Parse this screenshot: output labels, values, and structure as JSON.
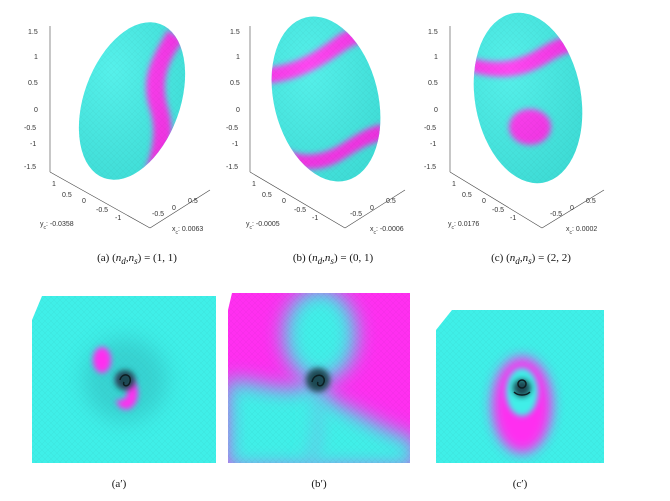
{
  "colors": {
    "cyan": "#3fefe8",
    "magenta": "#ff2ff0",
    "dark": "#12323a"
  },
  "panels": [
    {
      "id": "a",
      "z_ticks": [
        "1.5",
        "1",
        "0.5",
        "0",
        "-0.5",
        "-1",
        "-1.5"
      ],
      "y_ticks": [
        "1",
        "0.5",
        "0",
        "-0.5",
        "-1"
      ],
      "x_ticks": [
        "-0.5",
        "0",
        "0.5"
      ],
      "y_label": "y",
      "y_sub": "c",
      "y_value": ": -0.0358",
      "x_label": "x",
      "x_sub": "c",
      "x_value": ": 0.0063",
      "caption_prefix": "(a) (",
      "caption_vars": "n",
      "caption_sub1": "d",
      "caption_sub2": "s",
      "caption_value": "(1, 1)"
    },
    {
      "id": "b",
      "z_ticks": [
        "1.5",
        "1",
        "0.5",
        "0",
        "-0.5",
        "-1",
        "-1.5"
      ],
      "y_ticks": [
        "1",
        "0.5",
        "0",
        "-0.5",
        "-1"
      ],
      "x_ticks": [
        "-0.5",
        "0",
        "0.5"
      ],
      "y_label": "y",
      "y_sub": "c",
      "y_value": ": -0.0005",
      "x_label": "x",
      "x_sub": "c",
      "x_value": ": -0.0006",
      "caption_prefix": "(b) (",
      "caption_vars": "n",
      "caption_sub1": "d",
      "caption_sub2": "s",
      "caption_value": "(0, 1)"
    },
    {
      "id": "c",
      "z_ticks": [
        "1.5",
        "1",
        "0.5",
        "0",
        "-0.5",
        "-1",
        "-1.5"
      ],
      "y_ticks": [
        "1",
        "0.5",
        "0",
        "-0.5",
        "-1"
      ],
      "x_ticks": [
        "-0.5",
        "0",
        "0.5"
      ],
      "y_label": "y",
      "y_sub": "c",
      "y_value": ": 0.0176",
      "x_label": "x",
      "x_sub": "c",
      "x_value": ": 0.0002",
      "caption_prefix": "(c) (",
      "caption_vars": "n",
      "caption_sub1": "d",
      "caption_sub2": "s",
      "caption_value": "(2, 2)"
    }
  ],
  "bottom_captions": [
    "(a′)",
    "(b′)",
    "(c′)"
  ]
}
